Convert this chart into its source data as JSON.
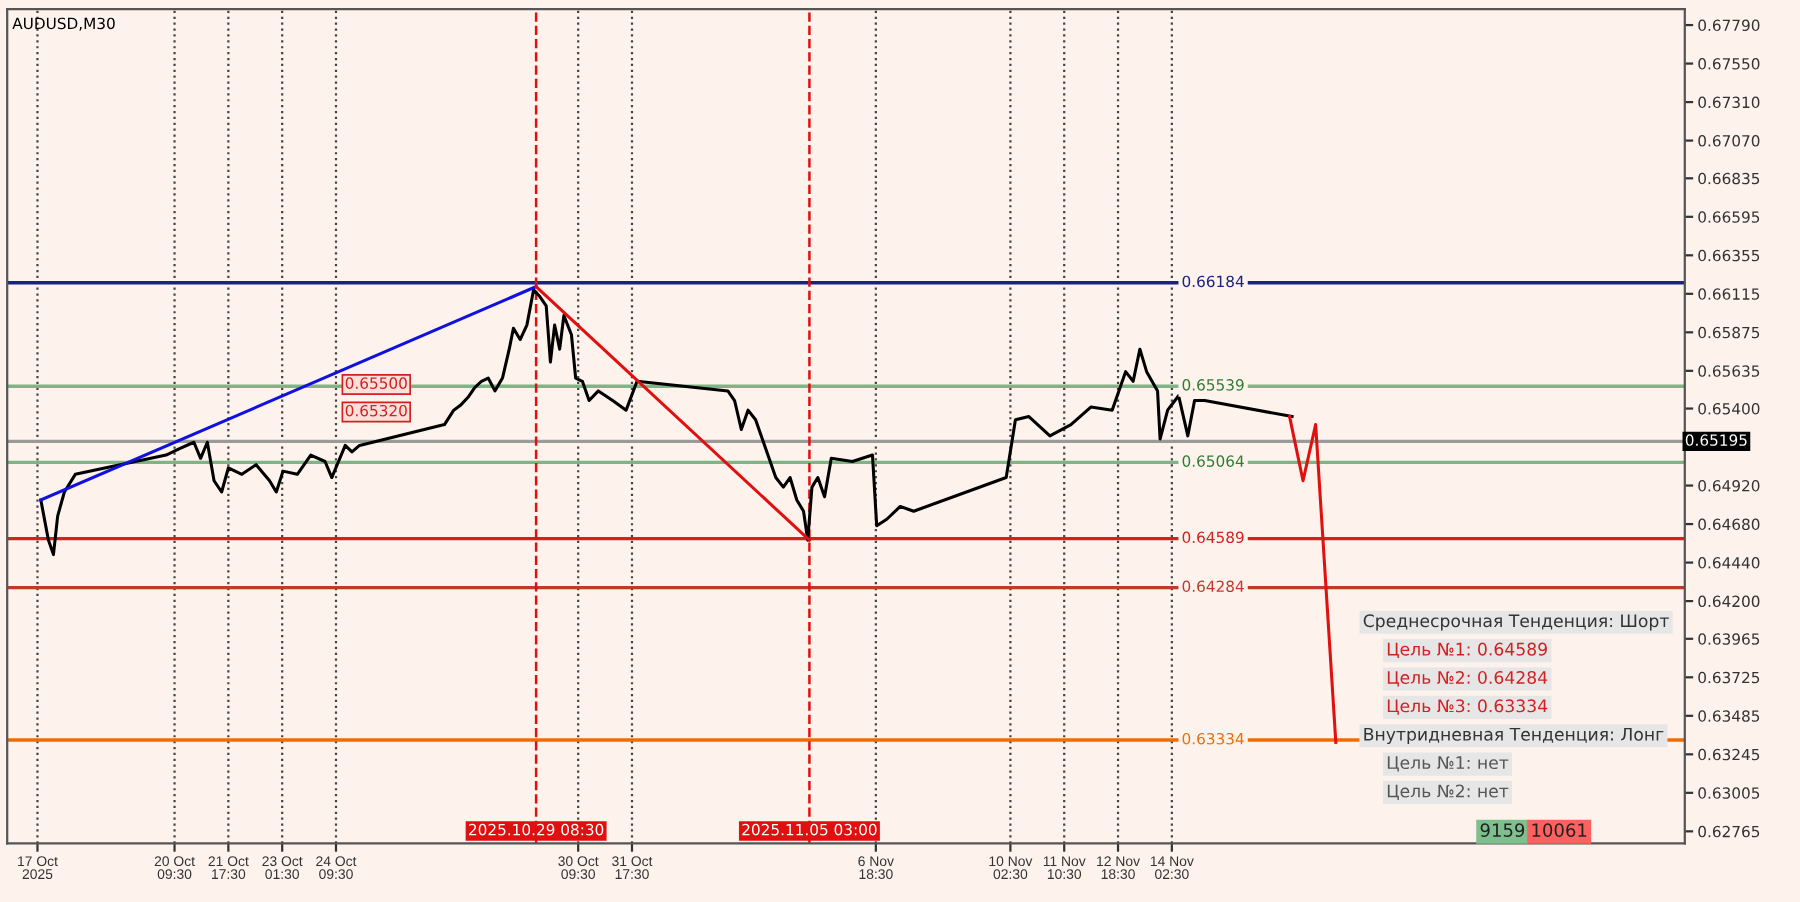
{
  "chart_data": {
    "type": "line",
    "title": "AUDUSD,M30",
    "xlim": [
      "2025-10-16T06:00",
      "2025-11-26T19:30"
    ],
    "ylim": [
      0.6269,
      0.6789
    ],
    "xticks": [
      {
        "value": "2025-10-17T00:00",
        "label": "17 Oct 2025"
      },
      {
        "value": "2025-10-20T09:30",
        "label": "20 Oct 09:30"
      },
      {
        "value": "2025-10-21T17:30",
        "label": "21 Oct 17:30"
      },
      {
        "value": "2025-10-23T01:30",
        "label": "23 Oct 01:30"
      },
      {
        "value": "2025-10-24T09:30",
        "label": "24 Oct 09:30"
      },
      {
        "value": "2025-10-30T09:30",
        "label": "30 Oct 09:30"
      },
      {
        "value": "2025-10-31T17:30",
        "label": "31 Oct 17:30"
      },
      {
        "value": "2025-11-06T18:30",
        "label": "6 Nov 18:30"
      },
      {
        "value": "2025-11-10T02:30",
        "label": "10 Nov 02:30"
      },
      {
        "value": "2025-11-11T10:30",
        "label": "11 Nov 10:30"
      },
      {
        "value": "2025-11-12T18:30",
        "label": "12 Nov 18:30"
      },
      {
        "value": "2025-11-14T02:30",
        "label": "14 Nov 02:30"
      }
    ],
    "yticks": [
      {
        "value": 0.6779,
        "label": "0.67790"
      },
      {
        "value": 0.6755,
        "label": "0.67550"
      },
      {
        "value": 0.6731,
        "label": "0.67310"
      },
      {
        "value": 0.6707,
        "label": "0.67070"
      },
      {
        "value": 0.66835,
        "label": "0.66835"
      },
      {
        "value": 0.66595,
        "label": "0.66595"
      },
      {
        "value": 0.66355,
        "label": "0.66355"
      },
      {
        "value": 0.66115,
        "label": "0.66115"
      },
      {
        "value": 0.65875,
        "label": "0.65875"
      },
      {
        "value": 0.65635,
        "label": "0.65635"
      },
      {
        "value": 0.654,
        "label": "0.65400"
      },
      {
        "value": 0.6492,
        "label": "0.64920"
      },
      {
        "value": 0.6468,
        "label": "0.64680"
      },
      {
        "value": 0.6444,
        "label": "0.64440"
      },
      {
        "value": 0.642,
        "label": "0.64200"
      },
      {
        "value": 0.63965,
        "label": "0.63965"
      },
      {
        "value": 0.63725,
        "label": "0.63725"
      },
      {
        "value": 0.63485,
        "label": "0.63485"
      },
      {
        "value": 0.63245,
        "label": "0.63245"
      },
      {
        "value": 0.63005,
        "label": "0.63005"
      },
      {
        "value": 0.62765,
        "label": "0.62765"
      }
    ],
    "grid": "x",
    "marker": "none",
    "line_style": "solid",
    "series": [
      {
        "color": "#000000",
        "x": [
          "2025-10-17T02:00",
          "2025-10-17T06:30",
          "2025-10-17T09:30",
          "2025-10-17T12:00",
          "2025-10-17T16:00",
          "2025-10-17T22:30",
          "2025-10-20T04:30",
          "2025-10-20T12:30",
          "2025-10-20T21:00",
          "2025-10-21T01:00",
          "2025-10-21T05:00",
          "2025-10-21T09:00",
          "2025-10-21T13:30",
          "2025-10-21T17:30",
          "2025-10-22T01:30",
          "2025-10-22T10:00",
          "2025-10-22T18:00",
          "2025-10-22T22:00",
          "2025-10-23T02:00",
          "2025-10-23T10:30",
          "2025-10-23T18:30",
          "2025-10-24T03:00",
          "2025-10-24T07:00",
          "2025-10-24T11:00",
          "2025-10-24T15:00",
          "2025-10-24T19:00",
          "2025-10-24T23:30",
          "2025-10-27T02:00",
          "2025-10-27T07:30",
          "2025-10-27T11:30",
          "2025-10-27T16:00",
          "2025-10-27T20:00",
          "2025-10-28T00:00",
          "2025-10-28T04:00",
          "2025-10-28T08:00",
          "2025-10-28T12:30",
          "2025-10-28T16:30",
          "2025-10-28T19:00",
          "2025-10-28T23:00",
          "2025-10-29T03:00",
          "2025-10-29T07:00",
          "2025-10-29T10:30",
          "2025-10-29T14:30",
          "2025-10-29T17:00",
          "2025-10-29T19:30",
          "2025-10-29T22:30",
          "2025-10-30T01:00",
          "2025-10-30T05:30",
          "2025-10-30T08:00",
          "2025-10-30T12:00",
          "2025-10-30T16:00",
          "2025-10-30T21:30",
          "2025-10-31T06:00",
          "2025-10-31T14:00",
          "2025-10-31T20:30",
          "2025-11-03T02:30",
          "2025-11-03T06:30",
          "2025-11-03T10:30",
          "2025-11-03T14:30",
          "2025-11-03T19:00",
          "2025-11-03T23:00",
          "2025-11-04T03:00",
          "2025-11-04T07:00",
          "2025-11-04T11:30",
          "2025-11-04T15:30",
          "2025-11-04T19:30",
          "2025-11-04T23:30",
          "2025-11-05T02:00",
          "2025-11-05T04:30",
          "2025-11-05T08:00",
          "2025-11-05T12:00",
          "2025-11-05T16:00",
          "2025-11-06T04:30",
          "2025-11-06T16:30",
          "2025-11-06T19:00",
          "2025-11-07T01:00",
          "2025-11-07T09:00",
          "2025-11-07T17:00",
          "2025-11-10T00:00",
          "2025-11-10T05:30",
          "2025-11-10T13:30",
          "2025-11-11T02:00",
          "2025-11-11T14:30",
          "2025-11-12T02:30",
          "2025-11-12T15:00",
          "2025-11-12T23:00",
          "2025-11-13T03:30",
          "2025-11-13T07:30",
          "2025-11-13T11:30",
          "2025-11-13T18:00",
          "2025-11-13T19:30",
          "2025-11-14T00:00",
          "2025-11-14T06:30",
          "2025-11-14T12:00",
          "2025-11-14T16:00",
          "2025-11-14T22:00",
          "2025-11-17T02:00"
        ],
        "values": [
          0.6483,
          0.6458,
          0.6449,
          0.6473,
          0.6488,
          0.6499,
          0.6511,
          0.6515,
          0.6519,
          0.6509,
          0.6519,
          0.6495,
          0.6488,
          0.6503,
          0.6499,
          0.6505,
          0.6495,
          0.6488,
          0.6501,
          0.6499,
          0.6511,
          0.6507,
          0.6497,
          0.6507,
          0.6517,
          0.6513,
          0.6517,
          0.653,
          0.6539,
          0.6542,
          0.6547,
          0.6553,
          0.6557,
          0.6559,
          0.6551,
          0.6559,
          0.6577,
          0.659,
          0.6583,
          0.6592,
          0.6614,
          0.661,
          0.6604,
          0.6569,
          0.6592,
          0.6577,
          0.6598,
          0.6586,
          0.6559,
          0.6557,
          0.6545,
          0.6551,
          0.6545,
          0.6539,
          0.6557,
          0.6551,
          0.6545,
          0.6527,
          0.6539,
          0.6533,
          0.6521,
          0.6509,
          0.6497,
          0.6491,
          0.6497,
          0.6483,
          0.6476,
          0.6458,
          0.6491,
          0.6497,
          0.6485,
          0.6509,
          0.6507,
          0.6511,
          0.6467,
          0.6471,
          0.6479,
          0.6476,
          0.6497,
          0.6533,
          0.6535,
          0.6523,
          0.653,
          0.6541,
          0.6539,
          0.6563,
          0.6557,
          0.6577,
          0.6563,
          0.6551,
          0.6521,
          0.6539,
          0.6548,
          0.6523,
          0.6545,
          0.6545,
          0.6535
        ]
      },
      {
        "color": "#e01010",
        "x": [
          "2025-11-17T00:30",
          "2025-11-17T08:30",
          "2025-11-17T16:00",
          "2025-11-18T04:00"
        ],
        "values": [
          0.6535,
          0.6495,
          0.653,
          0.6332
        ]
      },
      {
        "color": "#1010e0",
        "x": [
          "2025-10-17T02:00",
          "2025-10-29T08:30"
        ],
        "values": [
          0.6483,
          0.6616
        ]
      },
      {
        "color": "#e01010",
        "x": [
          "2025-10-29T08:30",
          "2025-11-05T03:00"
        ],
        "values": [
          0.6616,
          0.6458
        ]
      }
    ],
    "ref_lines": [
      {
        "axis": "y",
        "value": 0.66184,
        "label": "0.66184",
        "color": "#1a237e",
        "line_style": "solid"
      },
      {
        "axis": "y",
        "value": 0.65539,
        "label": "0.65539",
        "color": "#7fb584",
        "line_style": "solid"
      },
      {
        "axis": "y",
        "value": 0.65064,
        "label": "0.65064",
        "color": "#7fb584",
        "line_style": "solid"
      },
      {
        "axis": "y",
        "value": 0.64589,
        "label": "0.64589",
        "color": "#d32020",
        "line_style": "solid"
      },
      {
        "axis": "y",
        "value": 0.64284,
        "label": "0.64284",
        "color": "#c0392b",
        "line_style": "solid"
      },
      {
        "axis": "y",
        "value": 0.63334,
        "label": "0.63334",
        "color": "#ef6c00",
        "line_style": "solid"
      },
      {
        "axis": "y",
        "value": 0.65195,
        "label": "0.65195",
        "color": "#9a9a9a",
        "line_style": "solid"
      },
      {
        "axis": "x",
        "value": "2025-10-29T08:30",
        "label": "2025.10.29 08:30",
        "color": "#e01010",
        "line_style": "dashed"
      },
      {
        "axis": "x",
        "value": "2025-11-05T03:00",
        "label": "2025.11.05 03:00",
        "color": "#e01010",
        "line_style": "dashed"
      }
    ],
    "annotations": [
      "Среднесрочная Тенденция: Шорт",
      "Цель №1: 0.64589",
      "Цель №2: 0.64284",
      "Цель №3: 0.63334",
      "Внутридневная Тенденция: Лонг",
      "Цель №1: нет",
      "Цель №2: нет",
      "9159",
      "10061",
      "0.65500",
      "0.65320"
    ]
  }
}
